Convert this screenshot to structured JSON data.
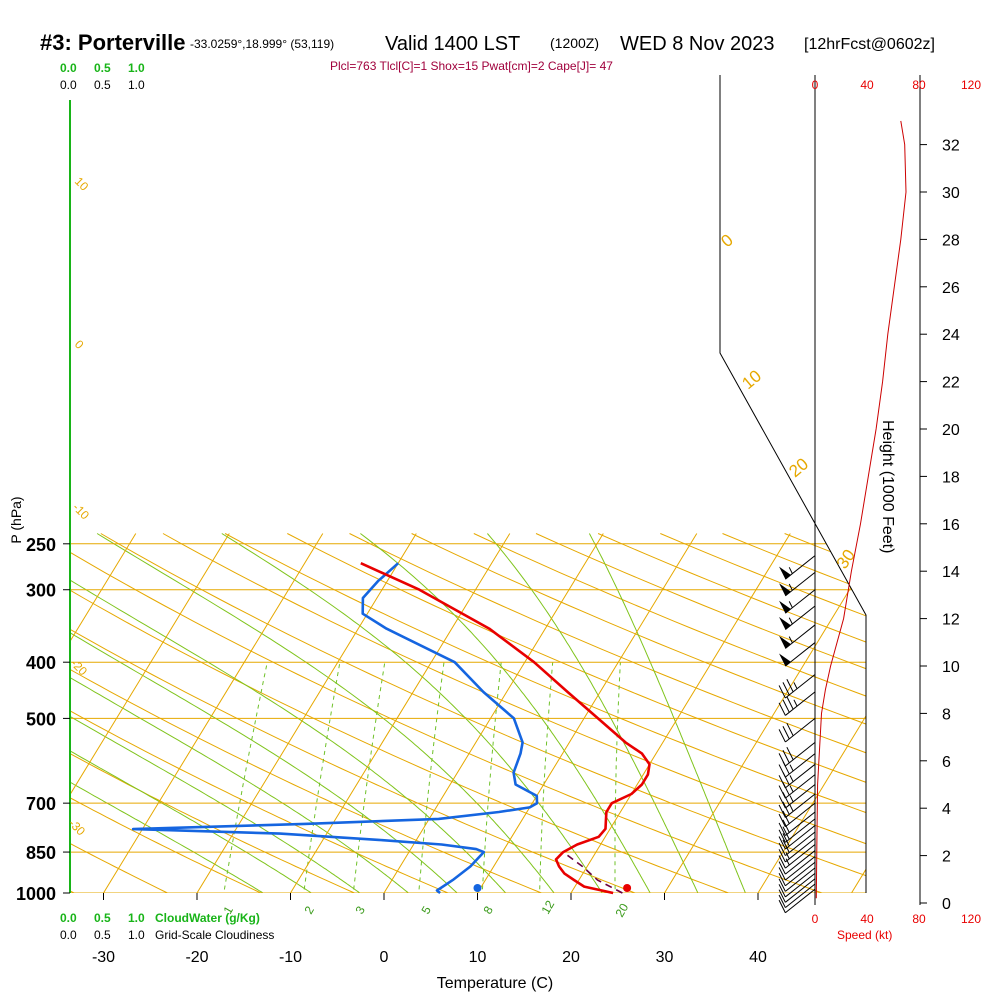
{
  "header": {
    "station": "#3: Porterville",
    "coords": "-33.0259°,18.999° (53,119)",
    "valid": "Valid 1400 LST",
    "utc": "(1200Z)",
    "date": "WED 8 Nov 2023",
    "fcst": "[12hrFcst@0602z]",
    "indices": "Plcl=763 Tlcl[C]=1 Shox=15 Pwat[cm]=2 Cape[J]= 47"
  },
  "colors": {
    "temperature": "#e80000",
    "dewpoint": "#1565e0",
    "parcel": "#6a0040",
    "isotherm": "#e6a800",
    "dry_adiabat": "#7fc41c",
    "mixing_ratio": "#6fc12a",
    "cloud_bar": "#18b418",
    "title_info": "#a0003c",
    "wind_profile": "#cc0000"
  },
  "chart_data": {
    "type": "skew-t",
    "xlabel": "Temperature (C)",
    "ylabel": "P (hPa)",
    "x_ticks": [
      -30,
      -20,
      -10,
      0,
      10,
      20,
      30,
      40
    ],
    "pressure_ticks": [
      250,
      300,
      400,
      500,
      700,
      850,
      1000
    ],
    "pressure_labels": [
      "250",
      "300",
      "400",
      "500",
      "700",
      "850",
      "1000"
    ],
    "height_axis": {
      "label": "Height (1000 Feet)",
      "ticks": [
        0,
        2,
        4,
        6,
        8,
        10,
        12,
        14,
        16,
        18,
        20,
        22,
        24,
        26,
        28,
        30,
        32
      ]
    },
    "speed_axis": {
      "label": "Speed (kt)",
      "ticks": [
        0,
        40,
        80,
        120
      ],
      "tick_labels": [
        "0",
        "40",
        "80",
        "120"
      ]
    },
    "cloud_scale": {
      "ticks": [
        "0.0",
        "0.5",
        "1.0"
      ],
      "cloud_water_label": "CloudWater (g/Kg)",
      "cloudiness_label": "Grid-Scale Cloudiness"
    },
    "temperature_profile": [
      {
        "p": 1000,
        "t": 24.5
      },
      {
        "p": 975,
        "t": 21
      },
      {
        "p": 950,
        "t": 19.5
      },
      {
        "p": 925,
        "t": 18
      },
      {
        "p": 900,
        "t": 17
      },
      {
        "p": 875,
        "t": 16.2
      },
      {
        "p": 850,
        "t": 16.5
      },
      {
        "p": 825,
        "t": 17.5
      },
      {
        "p": 800,
        "t": 19.3
      },
      {
        "p": 775,
        "t": 19.5
      },
      {
        "p": 750,
        "t": 19
      },
      {
        "p": 725,
        "t": 18.5
      },
      {
        "p": 700,
        "t": 18.5
      },
      {
        "p": 675,
        "t": 20
      },
      {
        "p": 650,
        "t": 20.5
      },
      {
        "p": 625,
        "t": 20.5
      },
      {
        "p": 600,
        "t": 20
      },
      {
        "p": 575,
        "t": 18.5
      },
      {
        "p": 550,
        "t": 16
      },
      {
        "p": 500,
        "t": 11.5
      },
      {
        "p": 450,
        "t": 6.5
      },
      {
        "p": 400,
        "t": 1
      },
      {
        "p": 350,
        "t": -6
      },
      {
        "p": 300,
        "t": -16
      },
      {
        "p": 270,
        "t": -24
      }
    ],
    "dewpoint_profile": [
      {
        "p": 1000,
        "t": 6
      },
      {
        "p": 990,
        "t": 5.5
      },
      {
        "p": 950,
        "t": 6.5
      },
      {
        "p": 900,
        "t": 7.5
      },
      {
        "p": 850,
        "t": 8
      },
      {
        "p": 840,
        "t": 7
      },
      {
        "p": 825,
        "t": 3
      },
      {
        "p": 810,
        "t": -4
      },
      {
        "p": 790,
        "t": -15
      },
      {
        "p": 776,
        "t": -31
      },
      {
        "p": 760,
        "t": -13
      },
      {
        "p": 745,
        "t": 1
      },
      {
        "p": 725,
        "t": 7
      },
      {
        "p": 712,
        "t": 10
      },
      {
        "p": 700,
        "t": 10.5
      },
      {
        "p": 680,
        "t": 10
      },
      {
        "p": 650,
        "t": 7
      },
      {
        "p": 620,
        "t": 6
      },
      {
        "p": 575,
        "t": 5.5
      },
      {
        "p": 550,
        "t": 5
      },
      {
        "p": 500,
        "t": 2.5
      },
      {
        "p": 450,
        "t": -2.5
      },
      {
        "p": 400,
        "t": -7.5
      },
      {
        "p": 350,
        "t": -17
      },
      {
        "p": 330,
        "t": -20.5
      },
      {
        "p": 310,
        "t": -21.5
      },
      {
        "p": 290,
        "t": -21
      },
      {
        "p": 270,
        "t": -20
      }
    ],
    "parcel_path": [
      {
        "p": 1000,
        "t": 25.5
      },
      {
        "p": 950,
        "t": 22
      },
      {
        "p": 900,
        "t": 19.5
      },
      {
        "p": 850,
        "t": 16.5
      }
    ],
    "surface_points": {
      "temperature": 26,
      "dewpoint": 10,
      "p": 1000
    },
    "wind_speed_profile": [
      {
        "h": 0.2,
        "s": 1
      },
      {
        "h": 3,
        "s": 1.5
      },
      {
        "h": 5,
        "s": 2
      },
      {
        "h": 6,
        "s": 3
      },
      {
        "h": 7,
        "s": 4
      },
      {
        "h": 8,
        "s": 5
      },
      {
        "h": 9,
        "s": 8
      },
      {
        "h": 10,
        "s": 12
      },
      {
        "h": 11,
        "s": 17
      },
      {
        "h": 12,
        "s": 22
      },
      {
        "h": 14,
        "s": 28
      },
      {
        "h": 16,
        "s": 35
      },
      {
        "h": 18,
        "s": 41
      },
      {
        "h": 20,
        "s": 47
      },
      {
        "h": 22,
        "s": 52
      },
      {
        "h": 24,
        "s": 56
      },
      {
        "h": 26,
        "s": 61
      },
      {
        "h": 28,
        "s": 66
      },
      {
        "h": 30,
        "s": 70
      },
      {
        "h": 32,
        "s": 69
      },
      {
        "h": 33,
        "s": 66
      }
    ],
    "wind_barbs": [
      {
        "p": 985,
        "spd": 10
      },
      {
        "p": 965,
        "spd": 10
      },
      {
        "p": 945,
        "spd": 10
      },
      {
        "p": 925,
        "spd": 10
      },
      {
        "p": 905,
        "spd": 10
      },
      {
        "p": 885,
        "spd": 10
      },
      {
        "p": 865,
        "spd": 10
      },
      {
        "p": 845,
        "spd": 10
      },
      {
        "p": 825,
        "spd": 15
      },
      {
        "p": 805,
        "spd": 15
      },
      {
        "p": 785,
        "spd": 20
      },
      {
        "p": 765,
        "spd": 20
      },
      {
        "p": 745,
        "spd": 20
      },
      {
        "p": 725,
        "spd": 20
      },
      {
        "p": 700,
        "spd": 20
      },
      {
        "p": 675,
        "spd": 25
      },
      {
        "p": 650,
        "spd": 25
      },
      {
        "p": 625,
        "spd": 25
      },
      {
        "p": 600,
        "spd": 25
      },
      {
        "p": 575,
        "spd": 25
      },
      {
        "p": 550,
        "spd": 30
      },
      {
        "p": 500,
        "spd": 30
      },
      {
        "p": 450,
        "spd": 35
      },
      {
        "p": 420,
        "spd": 35
      },
      {
        "p": 370,
        "spd": 50
      },
      {
        "p": 345,
        "spd": 55
      },
      {
        "p": 320,
        "spd": 55
      },
      {
        "p": 300,
        "spd": 55
      },
      {
        "p": 280,
        "spd": 55
      },
      {
        "p": 262,
        "spd": 55
      }
    ],
    "adiabat_labels": [
      "-10",
      "0",
      "10",
      "20",
      "30"
    ],
    "isotherm_labels": [
      "10",
      "0",
      "-10",
      "-20",
      "-30"
    ],
    "mixing_ratio_labels": [
      "1",
      "2",
      "3",
      "5",
      "8",
      "12",
      "20"
    ]
  }
}
